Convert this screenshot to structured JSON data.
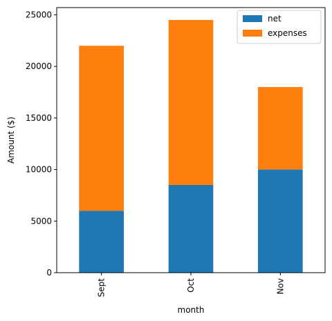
{
  "chart_data": {
    "type": "bar",
    "stacked": true,
    "categories": [
      "Sept",
      "Oct",
      "Nov"
    ],
    "series": [
      {
        "name": "net",
        "values": [
          6000,
          8500,
          10000
        ],
        "color": "#1f77b4"
      },
      {
        "name": "expenses",
        "values": [
          16000,
          16000,
          8000
        ],
        "color": "#ff7f0e"
      }
    ],
    "xlabel": "month",
    "ylabel": "Amount ($)",
    "ylim": [
      0,
      25700
    ],
    "yticks": [
      0,
      5000,
      10000,
      15000,
      20000,
      25000
    ],
    "grid": false,
    "legend_position": "top-right"
  }
}
